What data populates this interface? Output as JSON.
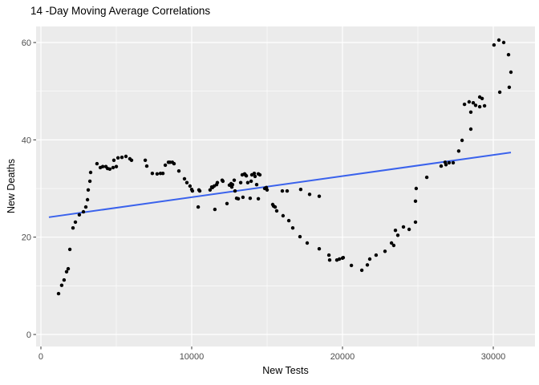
{
  "chart_data": {
    "type": "scatter",
    "title": "14 -Day Moving Average Correlations",
    "xlabel": "New Tests",
    "ylabel": "New Deaths",
    "x_ticks": [
      0,
      10000,
      20000,
      30000
    ],
    "x_minor_ticks": [
      5000,
      15000,
      25000
    ],
    "y_ticks": [
      0,
      20,
      40,
      60
    ],
    "y_minor_ticks": [
      10,
      30,
      50
    ],
    "xlim": [
      -319,
      32766
    ],
    "ylim": [
      -2.47,
      63.3
    ],
    "grid": true,
    "legend": "none",
    "panel_bg_color": "#EBEBEB",
    "grid_color": "#FFFFFF",
    "point_color": "#000000",
    "tick_color": "#333333",
    "tick_label_color": "#4D4D4D",
    "trend_line": {
      "type": "linear",
      "color": "#3A62EC",
      "x1": 530,
      "y1": 24.1,
      "x2": 31170,
      "y2": 37.4
    },
    "points": [
      [
        1170,
        8.4
      ],
      [
        1380,
        10.1
      ],
      [
        1540,
        11.2
      ],
      [
        1700,
        12.9
      ],
      [
        1810,
        13.5
      ],
      [
        1920,
        17.5
      ],
      [
        2130,
        21.9
      ],
      [
        2290,
        23.1
      ],
      [
        2550,
        24.6
      ],
      [
        2820,
        25.2
      ],
      [
        2980,
        26.2
      ],
      [
        3090,
        27.7
      ],
      [
        3140,
        29.7
      ],
      [
        3250,
        31.5
      ],
      [
        3300,
        33.3
      ],
      [
        3720,
        35.1
      ],
      [
        3940,
        34.3
      ],
      [
        4100,
        34.5
      ],
      [
        4310,
        34.5
      ],
      [
        4420,
        34.1
      ],
      [
        4570,
        34.0
      ],
      [
        4790,
        34.3
      ],
      [
        4840,
        35.8
      ],
      [
        5000,
        34.5
      ],
      [
        5110,
        36.3
      ],
      [
        5370,
        36.4
      ],
      [
        5640,
        36.6
      ],
      [
        5900,
        36.1
      ],
      [
        6010,
        35.8
      ],
      [
        6920,
        35.8
      ],
      [
        7020,
        34.6
      ],
      [
        7390,
        33.1
      ],
      [
        7710,
        33.0
      ],
      [
        7930,
        33.1
      ],
      [
        8090,
        33.1
      ],
      [
        8250,
        34.8
      ],
      [
        8460,
        35.4
      ],
      [
        8560,
        35.4
      ],
      [
        8720,
        35.4
      ],
      [
        8830,
        35.1
      ],
      [
        9150,
        33.6
      ],
      [
        9520,
        32.0
      ],
      [
        9680,
        31.2
      ],
      [
        9890,
        30.5
      ],
      [
        10000,
        29.8
      ],
      [
        10050,
        29.5
      ],
      [
        10430,
        26.2
      ],
      [
        10480,
        29.7
      ],
      [
        10530,
        29.5
      ],
      [
        11220,
        29.7
      ],
      [
        11330,
        30.3
      ],
      [
        11380,
        30.2
      ],
      [
        11490,
        30.5
      ],
      [
        11540,
        25.7
      ],
      [
        11650,
        30.8
      ],
      [
        11700,
        31.2
      ],
      [
        12020,
        31.7
      ],
      [
        12070,
        31.5
      ],
      [
        12340,
        26.9
      ],
      [
        12500,
        30.7
      ],
      [
        12610,
        31.0
      ],
      [
        12660,
        30.3
      ],
      [
        12710,
        30.8
      ],
      [
        12820,
        31.7
      ],
      [
        12870,
        29.5
      ],
      [
        12980,
        28.0
      ],
      [
        13090,
        27.9
      ],
      [
        13250,
        31.2
      ],
      [
        13350,
        32.8
      ],
      [
        13400,
        28.2
      ],
      [
        13510,
        33.0
      ],
      [
        13560,
        32.8
      ],
      [
        13620,
        32.6
      ],
      [
        13720,
        31.2
      ],
      [
        13880,
        28.0
      ],
      [
        13940,
        31.5
      ],
      [
        13990,
        32.8
      ],
      [
        14150,
        33.1
      ],
      [
        14200,
        32.5
      ],
      [
        14310,
        30.8
      ],
      [
        14420,
        33.0
      ],
      [
        14420,
        27.9
      ],
      [
        14520,
        32.8
      ],
      [
        14840,
        30.0
      ],
      [
        14950,
        30.2
      ],
      [
        15000,
        29.7
      ],
      [
        15370,
        26.7
      ],
      [
        15430,
        26.4
      ],
      [
        15530,
        26.2
      ],
      [
        15640,
        25.4
      ],
      [
        16010,
        29.5
      ],
      [
        16060,
        24.4
      ],
      [
        16330,
        29.5
      ],
      [
        16440,
        23.4
      ],
      [
        16700,
        21.9
      ],
      [
        17180,
        20.1
      ],
      [
        17230,
        29.8
      ],
      [
        17660,
        18.8
      ],
      [
        17820,
        28.8
      ],
      [
        18460,
        28.4
      ],
      [
        18460,
        17.6
      ],
      [
        19100,
        16.3
      ],
      [
        19150,
        15.3
      ],
      [
        19630,
        15.3
      ],
      [
        19790,
        15.5
      ],
      [
        20000,
        15.7
      ],
      [
        20050,
        15.8
      ],
      [
        20590,
        14.2
      ],
      [
        21280,
        13.2
      ],
      [
        21650,
        14.3
      ],
      [
        21810,
        15.5
      ],
      [
        22230,
        16.3
      ],
      [
        22820,
        17.1
      ],
      [
        23250,
        18.8
      ],
      [
        23400,
        18.3
      ],
      [
        23510,
        21.4
      ],
      [
        23670,
        20.4
      ],
      [
        24040,
        22.1
      ],
      [
        24420,
        21.6
      ],
      [
        24840,
        23.1
      ],
      [
        24840,
        27.4
      ],
      [
        24890,
        30.0
      ],
      [
        25590,
        32.3
      ],
      [
        26540,
        34.6
      ],
      [
        26810,
        35.4
      ],
      [
        26860,
        34.9
      ],
      [
        27070,
        35.3
      ],
      [
        27340,
        35.3
      ],
      [
        27710,
        37.7
      ],
      [
        27930,
        39.9
      ],
      [
        28090,
        47.3
      ],
      [
        28400,
        47.8
      ],
      [
        28510,
        42.2
      ],
      [
        28510,
        45.7
      ],
      [
        28670,
        47.6
      ],
      [
        28830,
        47.1
      ],
      [
        29100,
        46.8
      ],
      [
        29100,
        48.8
      ],
      [
        29260,
        48.5
      ],
      [
        29420,
        47.0
      ],
      [
        30050,
        59.5
      ],
      [
        30370,
        60.5
      ],
      [
        30430,
        49.8
      ],
      [
        30690,
        60.0
      ],
      [
        31010,
        57.5
      ],
      [
        31060,
        50.8
      ],
      [
        31170,
        53.9
      ]
    ]
  }
}
